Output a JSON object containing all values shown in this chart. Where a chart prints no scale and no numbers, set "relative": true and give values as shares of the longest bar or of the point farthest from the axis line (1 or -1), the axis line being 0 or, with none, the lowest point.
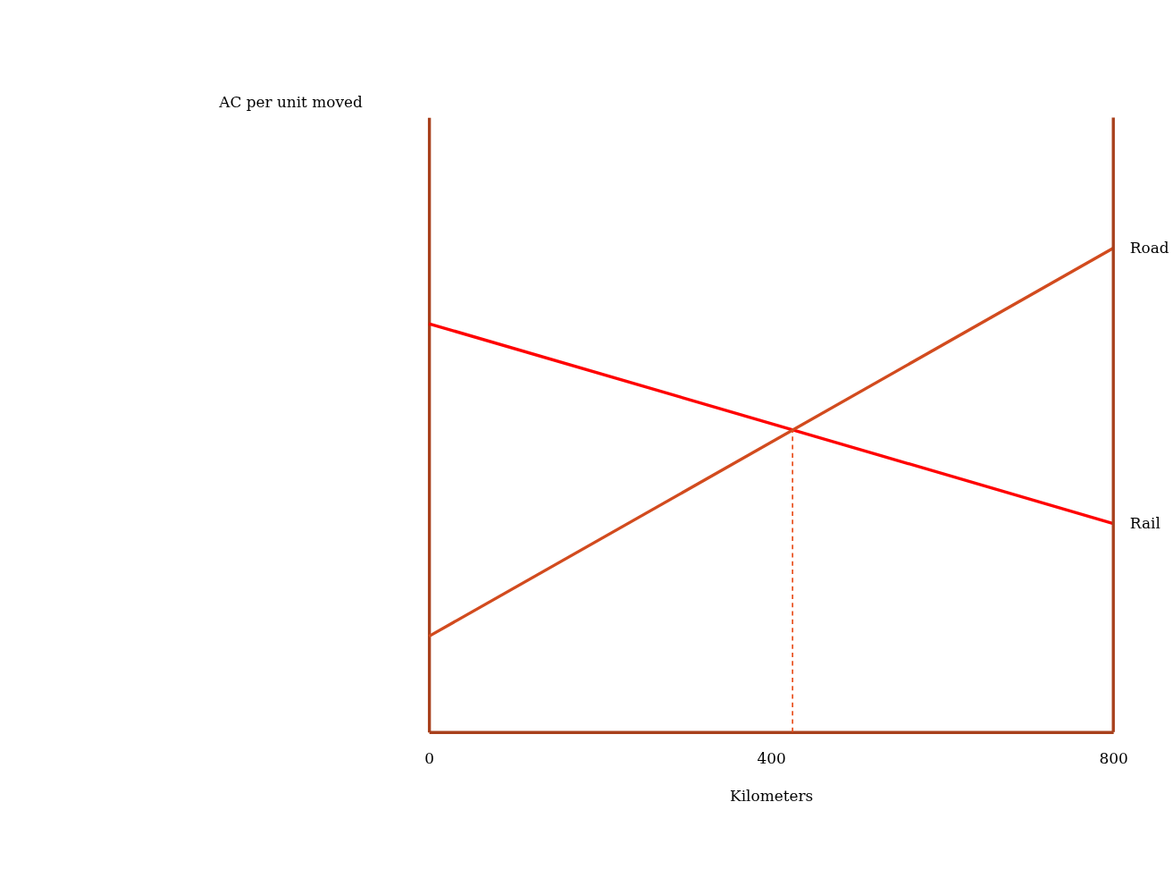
{
  "chart_data": {
    "type": "line",
    "relative": true,
    "xlabel": "Kilometers",
    "annotations": [
      "AC per unit moved"
    ],
    "x": [
      0,
      800
    ],
    "xlim": [
      0,
      800
    ],
    "xticks": [
      0,
      400,
      800
    ],
    "marker": "none",
    "line_style": "solid",
    "series": [
      {
        "name": "Rail",
        "color": "#ff0000",
        "values": [
          0.844,
          0.431
        ]
      },
      {
        "name": "Road",
        "color": "#d24b1e",
        "values": [
          0.198,
          1
        ]
      }
    ],
    "ref_lines": [
      {
        "axis": "x",
        "value": 425,
        "color": "#e8501e",
        "line_style": "dashed"
      }
    ]
  }
}
